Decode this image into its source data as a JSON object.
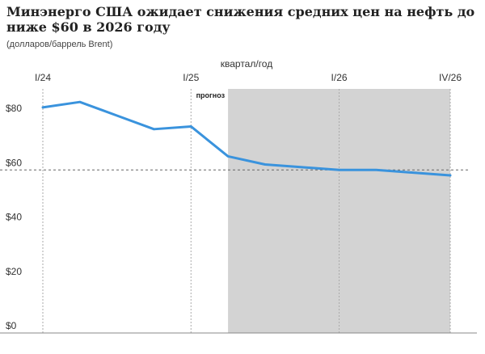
{
  "chart_data": {
    "type": "line",
    "title": "Минэнерго США ожидает снижения средних цен на нефть до ниже $60 в 2026 году",
    "subtitle": "(долларов/баррель Brent)",
    "xlabel": "квартал/год",
    "x_ticks": [
      {
        "index": 0,
        "label": "I/24"
      },
      {
        "index": 4,
        "label": "I/25"
      },
      {
        "index": 8,
        "label": "I/26"
      },
      {
        "index": 11,
        "label": "IV/26"
      }
    ],
    "y_ticks": [
      {
        "value": 0,
        "label": "$0"
      },
      {
        "value": 20,
        "label": "$20"
      },
      {
        "value": 40,
        "label": "$40"
      },
      {
        "value": 60,
        "label": "$60"
      },
      {
        "value": 80,
        "label": "$80"
      }
    ],
    "ylim": [
      0,
      90
    ],
    "reference_line": 60,
    "forecast_label": "прогноз",
    "forecast_start_index": 5,
    "series": [
      {
        "values": [
          83,
          85,
          80,
          75,
          76,
          65,
          62,
          61,
          60,
          60,
          59,
          58
        ],
        "color": "#3a93dd"
      }
    ],
    "colors": {
      "line": "#3a93dd",
      "forecast_shade": "#d3d3d3",
      "grid": "#aaaaaa"
    }
  }
}
